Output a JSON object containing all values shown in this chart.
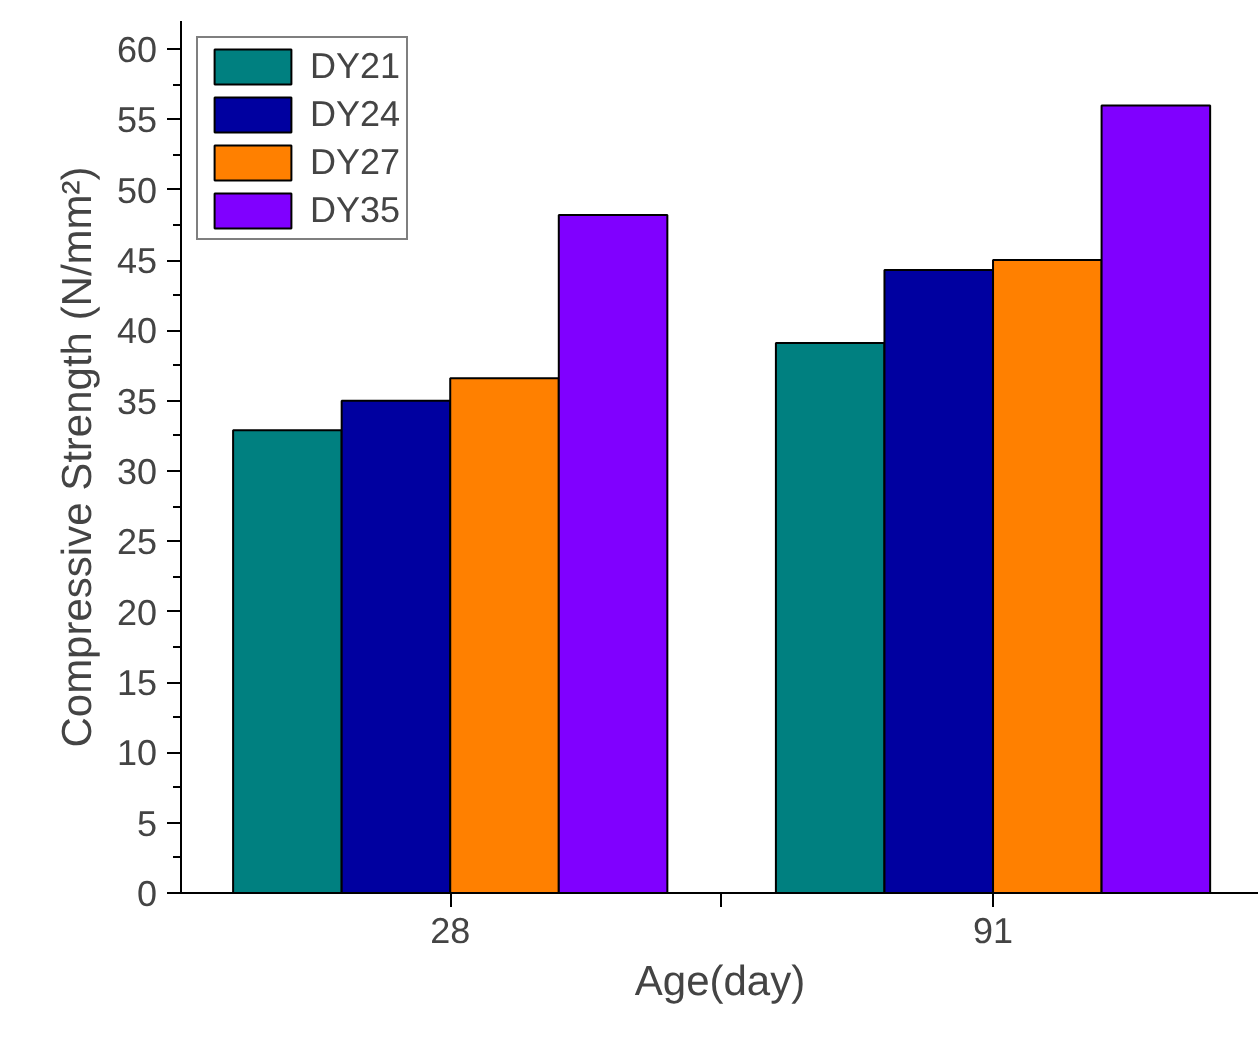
{
  "chart_data": {
    "type": "bar",
    "xlabel": "Age(day)",
    "ylabel": "Compressive Strength (N/mm²)",
    "categories": [
      "28",
      "91"
    ],
    "series": [
      {
        "name": "DY21",
        "color": "#008080",
        "values": [
          32.9,
          39.1
        ]
      },
      {
        "name": "DY24",
        "color": "#0000a0",
        "values": [
          35.0,
          44.3
        ]
      },
      {
        "name": "DY27",
        "color": "#ff8000",
        "values": [
          36.6,
          45.0
        ]
      },
      {
        "name": "DY35",
        "color": "#8000ff",
        "values": [
          48.2,
          56.0
        ]
      }
    ],
    "ylim": [
      0,
      62
    ],
    "yticks": [
      0,
      5,
      10,
      15,
      20,
      25,
      30,
      35,
      40,
      45,
      50,
      55,
      60
    ],
    "grid": false,
    "legend": "top left"
  }
}
